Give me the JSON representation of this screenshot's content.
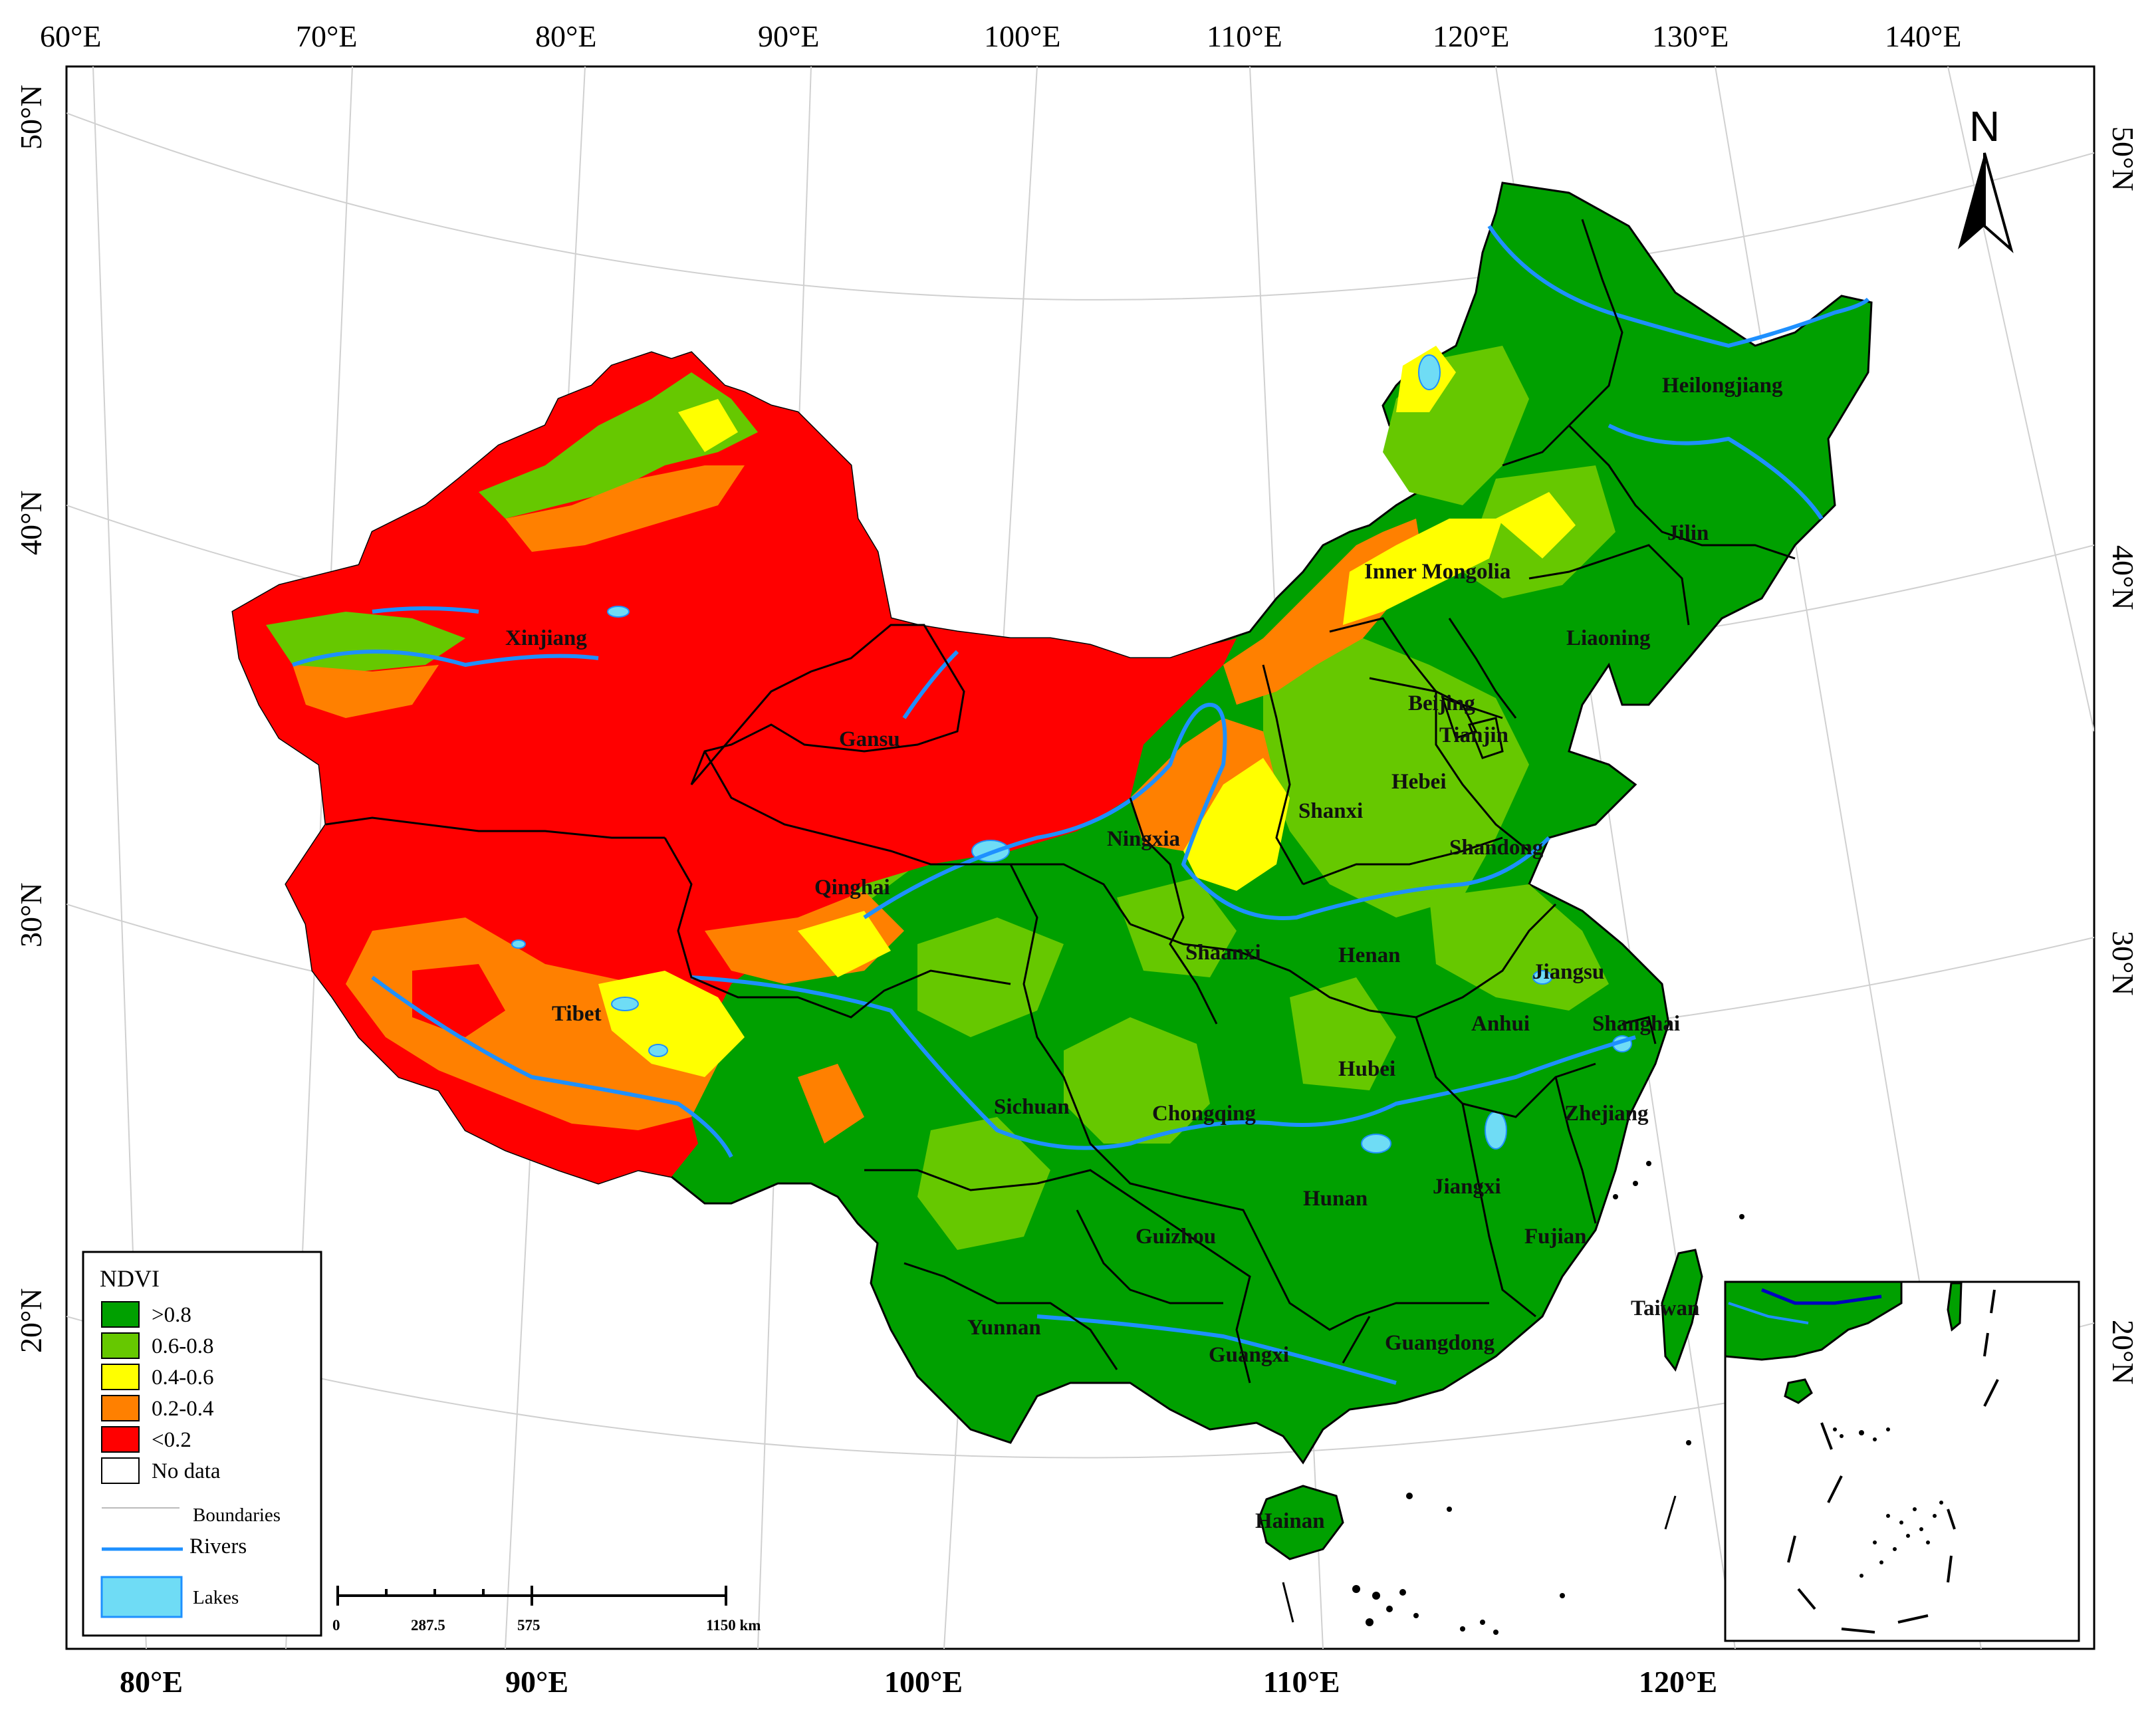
{
  "map": {
    "ticks_top": [
      "60°E",
      "70°E",
      "80°E",
      "90°E",
      "100°E",
      "110°E",
      "120°E",
      "130°E",
      "140°E"
    ],
    "ticks_bottom": [
      "80°E",
      "90°E",
      "100°E",
      "110°E",
      "120°E"
    ],
    "ticks_left": [
      "50°N",
      "40°N",
      "30°N",
      "20°N"
    ],
    "ticks_right": [
      "50°N",
      "40°N",
      "30°N",
      "20°N"
    ],
    "north_arrow": "N",
    "provinces": {
      "heilongjiang": "Heilongjiang",
      "jilin": "Jilin",
      "liaoning": "Liaoning",
      "inner_mongolia": "Inner Mongolia",
      "beijing": "Beijing",
      "tianjin": "Tianjin",
      "hebei": "Hebei",
      "shanxi": "Shanxi",
      "shandong": "Shandong",
      "xinjiang": "Xinjiang",
      "gansu": "Gansu",
      "ningxia": "Ningxia",
      "qinghai": "Qinghai",
      "shaanxi": "Shaanxi",
      "henan": "Henan",
      "jiangsu": "Jiangsu",
      "anhui": "Anhui",
      "shanghai": "Shanghai",
      "tibet": "Tibet",
      "sichuan": "Sichuan",
      "chongqing": "Chongqing",
      "hubei": "Hubei",
      "zhejiang": "Zhejiang",
      "hunan": "Hunan",
      "jiangxi": "Jiangxi",
      "guizhou": "Guizhou",
      "fujian": "Fujian",
      "yunnan": "Yunnan",
      "guangxi": "Guangxi",
      "guangdong": "Guangdong",
      "taiwan": "Taiwan",
      "hainan": "Hainan"
    }
  },
  "legend": {
    "title": "NDVI",
    "classes": [
      {
        "label": ">0.8",
        "color": "#00A000"
      },
      {
        "label": "0.6-0.8",
        "color": "#66C800"
      },
      {
        "label": "0.4-0.6",
        "color": "#FFFF00"
      },
      {
        "label": "0.2-0.4",
        "color": "#FF8000"
      },
      {
        "label": "<0.2",
        "color": "#FF0000"
      },
      {
        "label": "No data",
        "color": "#FFFFFF"
      }
    ],
    "boundaries_label": "Boundaries",
    "rivers_label": "Rivers",
    "lakes_label": "Lakes",
    "river_color": "#1E90FF",
    "lake_color": "#6FDCF5"
  },
  "scale_bar": {
    "labels": [
      "0",
      "287.5",
      "575",
      "1150 km"
    ]
  }
}
